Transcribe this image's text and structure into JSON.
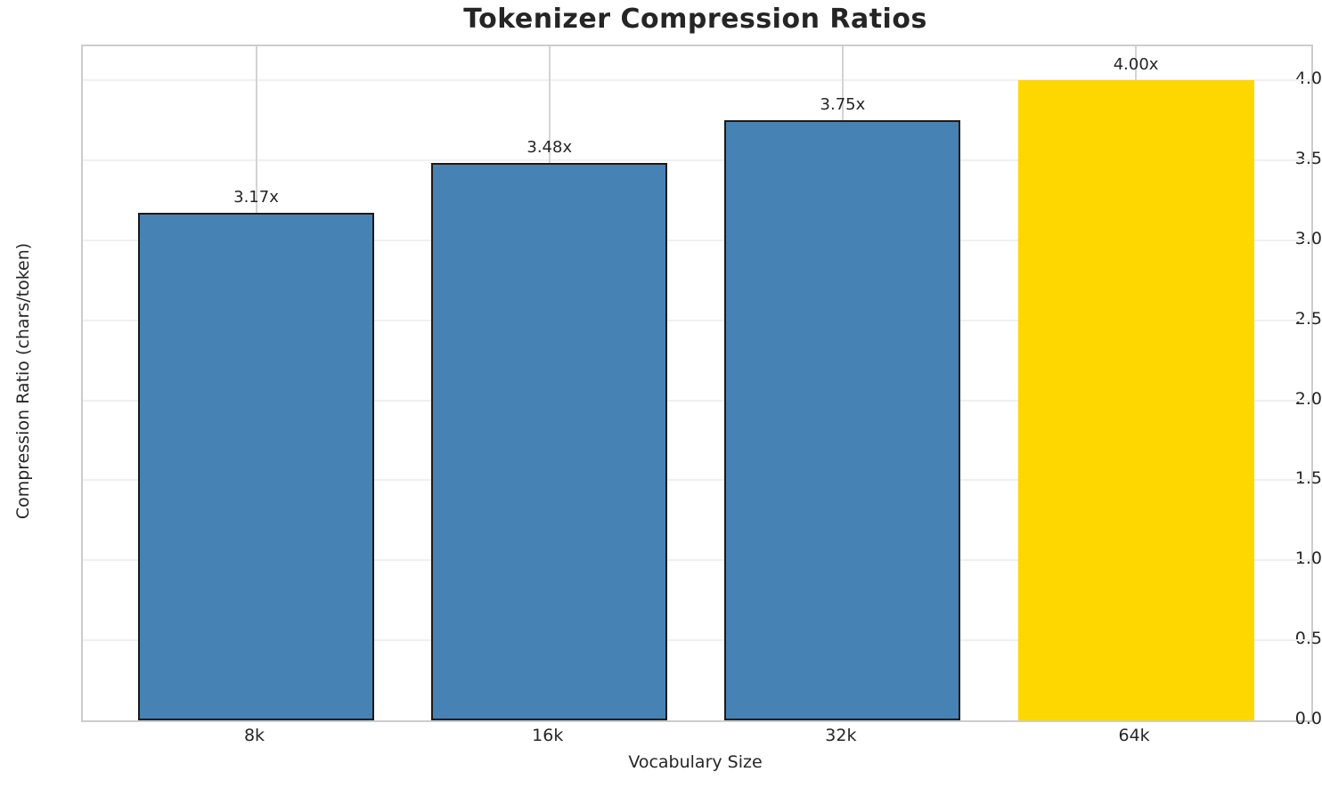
{
  "chart_data": {
    "type": "bar",
    "title": "Tokenizer Compression Ratios",
    "xlabel": "Vocabulary Size",
    "ylabel": "Compression Ratio (chars/token)",
    "categories": [
      "8k",
      "16k",
      "32k",
      "64k"
    ],
    "values": [
      3.17,
      3.48,
      3.75,
      4.0
    ],
    "bar_labels": [
      "3.17x",
      "3.48x",
      "3.75x",
      "4.00x"
    ],
    "bar_colors": [
      "#4682B4",
      "#4682B4",
      "#4682B4",
      "#FFD700"
    ],
    "bar_edge_colors": [
      "#1a1a1a",
      "#1a1a1a",
      "#1a1a1a",
      "#FFD700"
    ],
    "ylim": [
      0.0,
      4.2
    ],
    "yticks": [
      0.0,
      0.5,
      1.0,
      1.5,
      2.0,
      2.5,
      3.0,
      3.5,
      4.0
    ],
    "ytick_labels": [
      "0.0",
      "0.5",
      "1.0",
      "1.5",
      "2.0",
      "2.5",
      "3.0",
      "3.5",
      "4.0"
    ],
    "grid": "on",
    "legend": "none",
    "colors": {
      "steelblue": "#4682B4",
      "gold": "#FFD700",
      "bar_edge": "#1a1a1a",
      "grid_horizontal": "#f0f0f0",
      "grid_vertical": "#d4d4d4",
      "spine": "#cccccc",
      "text": "#262626",
      "title_text": "#252525",
      "background": "#ffffff"
    }
  }
}
